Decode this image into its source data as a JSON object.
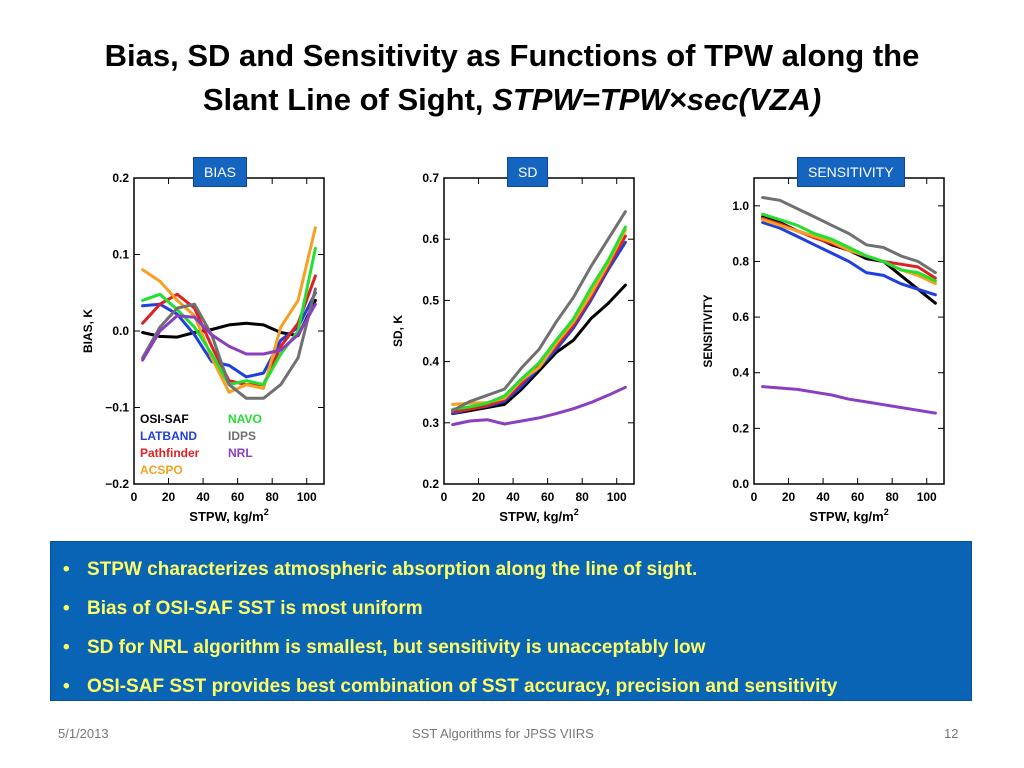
{
  "slide": {
    "title_line1": "Bias, SD and Sensitivity as Functions of TPW along the",
    "title_line2_plain": "Slant Line of Sight, ",
    "title_line2_italic": "STPW=TPW×sec(VZA)"
  },
  "tags": {
    "bias": "BIAS",
    "sd": "SD",
    "sensitivity": "SENSITIVITY"
  },
  "bullets": [
    "STPW characterizes atmospheric absorption along the line of sight.",
    "Bias of OSI-SAF SST is most uniform",
    "SD for NRL algorithm is smallest, but sensitivity is unacceptably low",
    "OSI-SAF SST provides best combination of SST accuracy, precision  and sensitivity"
  ],
  "footer": {
    "date": "5/1/2013",
    "center": "SST Algorithms for JPSS VIIRS",
    "page": "12"
  },
  "colors": {
    "OSI-SAF": "#000000",
    "LATBAND": "#1f3fe0",
    "Pathfinder": "#e02020",
    "ACSPO": "#f5a020",
    "NAVO": "#22e030",
    "IDPS": "#707070",
    "NRL": "#8a3fc0",
    "tag_bg": "#1565c0",
    "bullet_bg": "#0a64b6",
    "bullet_text": "#ffff66"
  },
  "chart_data": [
    {
      "type": "line",
      "id": "bias",
      "xlabel": "STPW, kg/m",
      "xlabel_sup": "2",
      "ylabel": "BIAS, K",
      "xlim": [
        0,
        110
      ],
      "ylim": [
        -0.2,
        0.2
      ],
      "xticks": [
        0,
        20,
        40,
        60,
        80,
        100
      ],
      "xtick_labels": [
        "0",
        "20",
        "40",
        "60",
        "80",
        "100"
      ],
      "yticks": [
        -0.2,
        -0.1,
        0.0,
        0.1,
        0.2
      ],
      "ytick_labels": [
        "−0.2",
        "−0.1",
        "0.0",
        "0.1",
        "0.2"
      ],
      "x": [
        5,
        15,
        25,
        35,
        45,
        55,
        65,
        75,
        85,
        95,
        105
      ],
      "legend": [
        {
          "name": "OSI-SAF",
          "col": 0,
          "row": 0
        },
        {
          "name": "LATBAND",
          "col": 0,
          "row": 1
        },
        {
          "name": "Pathfinder",
          "col": 0,
          "row": 2
        },
        {
          "name": "ACSPO",
          "col": 0,
          "row": 3
        },
        {
          "name": "NAVO",
          "col": 1,
          "row": 0
        },
        {
          "name": "IDPS",
          "col": 1,
          "row": 1
        },
        {
          "name": "NRL",
          "col": 1,
          "row": 2
        }
      ],
      "series": [
        {
          "name": "OSI-SAF",
          "values": [
            -0.002,
            -0.007,
            -0.008,
            -0.002,
            0.002,
            0.008,
            0.01,
            0.008,
            -0.002,
            -0.006,
            0.04
          ]
        },
        {
          "name": "LATBAND",
          "values": [
            0.033,
            0.035,
            0.022,
            -0.005,
            -0.04,
            -0.045,
            -0.06,
            -0.055,
            -0.012,
            0.005,
            0.05
          ]
        },
        {
          "name": "Pathfinder",
          "values": [
            0.01,
            0.035,
            0.048,
            0.03,
            -0.02,
            -0.065,
            -0.07,
            -0.07,
            -0.02,
            0.01,
            0.072
          ]
        },
        {
          "name": "ACSPO",
          "values": [
            0.08,
            0.065,
            0.04,
            0.02,
            -0.035,
            -0.08,
            -0.07,
            -0.075,
            0.005,
            0.04,
            0.135
          ]
        },
        {
          "name": "NAVO",
          "values": [
            0.04,
            0.048,
            0.028,
            0.005,
            -0.03,
            -0.07,
            -0.065,
            -0.07,
            -0.03,
            0.0,
            0.108
          ]
        },
        {
          "name": "IDPS",
          "values": [
            -0.035,
            0.005,
            0.03,
            0.035,
            -0.005,
            -0.07,
            -0.088,
            -0.088,
            -0.07,
            -0.035,
            0.055
          ]
        },
        {
          "name": "NRL",
          "values": [
            -0.038,
            0.0,
            0.02,
            0.018,
            -0.005,
            -0.02,
            -0.03,
            -0.03,
            -0.025,
            -0.005,
            0.035
          ]
        }
      ]
    },
    {
      "type": "line",
      "id": "sd",
      "xlabel": "STPW, kg/m",
      "xlabel_sup": "2",
      "ylabel": "SD, K",
      "xlim": [
        0,
        110
      ],
      "ylim": [
        0.2,
        0.7
      ],
      "xticks": [
        0,
        20,
        40,
        60,
        80,
        100
      ],
      "xtick_labels": [
        "0",
        "20",
        "40",
        "60",
        "80",
        "100"
      ],
      "yticks": [
        0.2,
        0.3,
        0.4,
        0.5,
        0.6,
        0.7
      ],
      "ytick_labels": [
        "0.2",
        "0.3",
        "0.4",
        "0.5",
        "0.6",
        "0.7"
      ],
      "x": [
        5,
        15,
        25,
        35,
        45,
        55,
        65,
        75,
        85,
        95,
        105
      ],
      "series": [
        {
          "name": "OSI-SAF",
          "values": [
            0.315,
            0.32,
            0.325,
            0.33,
            0.355,
            0.385,
            0.415,
            0.435,
            0.47,
            0.495,
            0.525
          ]
        },
        {
          "name": "LATBAND",
          "values": [
            0.315,
            0.322,
            0.327,
            0.335,
            0.36,
            0.39,
            0.42,
            0.455,
            0.5,
            0.55,
            0.595
          ]
        },
        {
          "name": "Pathfinder",
          "values": [
            0.318,
            0.322,
            0.328,
            0.338,
            0.365,
            0.395,
            0.425,
            0.46,
            0.505,
            0.555,
            0.605
          ]
        },
        {
          "name": "ACSPO",
          "values": [
            0.33,
            0.332,
            0.333,
            0.34,
            0.37,
            0.39,
            0.43,
            0.465,
            0.51,
            0.56,
            0.615
          ]
        },
        {
          "name": "NAVO",
          "values": [
            0.322,
            0.326,
            0.332,
            0.344,
            0.372,
            0.398,
            0.435,
            0.47,
            0.52,
            0.565,
            0.62
          ]
        },
        {
          "name": "IDPS",
          "values": [
            0.32,
            0.335,
            0.345,
            0.355,
            0.39,
            0.42,
            0.465,
            0.505,
            0.555,
            0.6,
            0.645
          ]
        },
        {
          "name": "NRL",
          "values": [
            0.297,
            0.303,
            0.305,
            0.298,
            0.303,
            0.308,
            0.315,
            0.323,
            0.333,
            0.345,
            0.358
          ]
        }
      ]
    },
    {
      "type": "line",
      "id": "sensitivity",
      "xlabel": "STPW, kg/m",
      "xlabel_sup": "2",
      "ylabel": "SENSITIVITY",
      "xlim": [
        0,
        110
      ],
      "ylim": [
        0.0,
        1.1
      ],
      "xticks": [
        0,
        20,
        40,
        60,
        80,
        100
      ],
      "xtick_labels": [
        "0",
        "20",
        "40",
        "60",
        "80",
        "100"
      ],
      "yticks": [
        0.0,
        0.2,
        0.4,
        0.6,
        0.8,
        1.0
      ],
      "ytick_labels": [
        "0.0",
        "0.2",
        "0.4",
        "0.6",
        "0.8",
        "1.0"
      ],
      "x": [
        5,
        15,
        25,
        35,
        45,
        55,
        65,
        75,
        85,
        95,
        105
      ],
      "series": [
        {
          "name": "OSI-SAF",
          "values": [
            0.96,
            0.94,
            0.91,
            0.89,
            0.86,
            0.84,
            0.81,
            0.8,
            0.75,
            0.7,
            0.65
          ]
        },
        {
          "name": "LATBAND",
          "values": [
            0.94,
            0.92,
            0.89,
            0.86,
            0.83,
            0.8,
            0.76,
            0.75,
            0.72,
            0.7,
            0.68
          ]
        },
        {
          "name": "Pathfinder",
          "values": [
            0.955,
            0.935,
            0.91,
            0.885,
            0.865,
            0.84,
            0.82,
            0.8,
            0.79,
            0.78,
            0.74
          ]
        },
        {
          "name": "ACSPO",
          "values": [
            0.95,
            0.93,
            0.91,
            0.89,
            0.87,
            0.84,
            0.82,
            0.8,
            0.77,
            0.75,
            0.72
          ]
        },
        {
          "name": "NAVO",
          "values": [
            0.97,
            0.95,
            0.93,
            0.9,
            0.88,
            0.85,
            0.82,
            0.8,
            0.77,
            0.76,
            0.73
          ]
        },
        {
          "name": "IDPS",
          "values": [
            1.03,
            1.02,
            0.99,
            0.96,
            0.93,
            0.9,
            0.86,
            0.85,
            0.82,
            0.8,
            0.76
          ]
        },
        {
          "name": "NRL",
          "values": [
            0.35,
            0.345,
            0.34,
            0.33,
            0.32,
            0.305,
            0.295,
            0.285,
            0.275,
            0.265,
            0.255
          ]
        }
      ]
    }
  ]
}
